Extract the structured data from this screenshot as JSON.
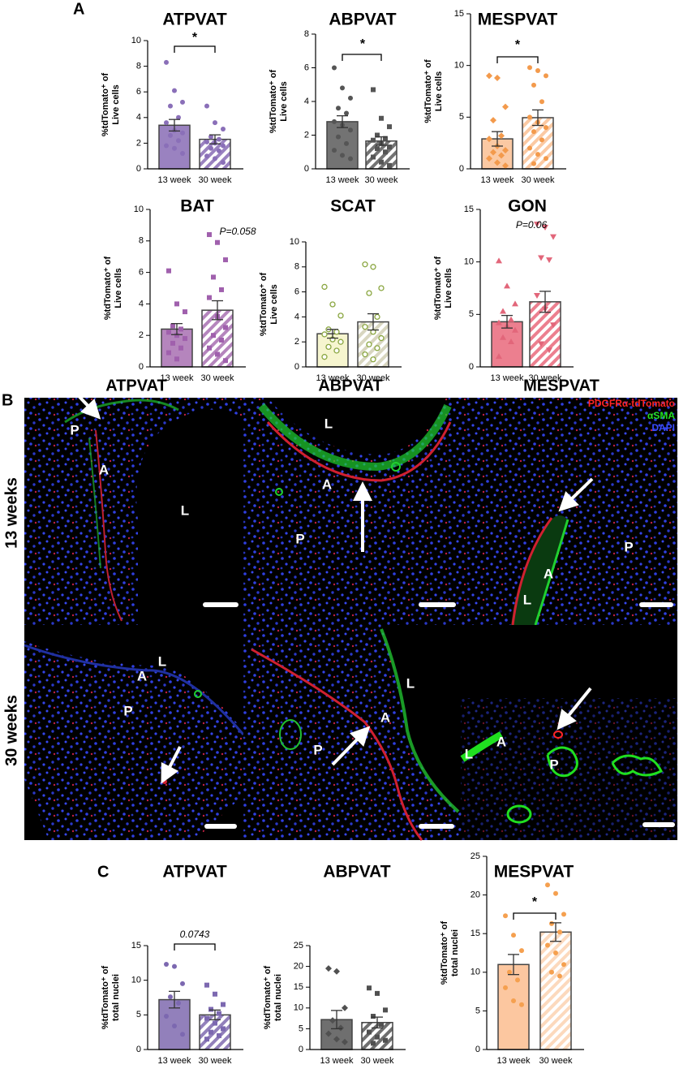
{
  "panel_labels": [
    "A",
    "B",
    "C"
  ],
  "chart_data": [
    {
      "type": "bar",
      "title": "ATPVAT",
      "ylabel": [
        "%tdTomato⁺ of",
        "Live cells"
      ],
      "categories": [
        "13 week",
        "30 week"
      ],
      "values": [
        3.4,
        2.3
      ],
      "errors": [
        0.45,
        0.35
      ],
      "points": [
        [
          8.3,
          6.1,
          5.2,
          4.9,
          4.0,
          3.6,
          3.0,
          2.8,
          2.6,
          2.2,
          1.8,
          1.6,
          1.2
        ],
        [
          4.9,
          3.6,
          3.1,
          2.5,
          2.3,
          2.1,
          2.0,
          1.8,
          1.6,
          1.4,
          1.0,
          0.8,
          0.5
        ]
      ],
      "colors": [
        "#9a82c0",
        "#9a82c0"
      ],
      "dot_colors": [
        "#8a6fb8",
        "#8a6fb8"
      ],
      "markers": [
        "circle",
        "circle"
      ],
      "hatch": [
        false,
        true
      ],
      "ylim": [
        0,
        10
      ],
      "yticks": [
        0,
        2,
        4,
        6,
        8,
        10
      ],
      "annotation": "*",
      "annotation_style": "normal",
      "bracket": true
    },
    {
      "type": "bar",
      "title": "ABPVAT",
      "ylabel": [
        "%tdTomato⁺ of",
        "Live cells"
      ],
      "categories": [
        "13 week",
        "30 week"
      ],
      "values": [
        2.8,
        1.65
      ],
      "errors": [
        0.35,
        0.25
      ],
      "points": [
        [
          6.0,
          4.8,
          4.2,
          3.6,
          3.3,
          2.8,
          2.6,
          2.3,
          1.9,
          1.5,
          1.1,
          0.8,
          0.6
        ],
        [
          4.7,
          3.0,
          2.5,
          2.0,
          1.8,
          1.7,
          1.5,
          1.3,
          1.2,
          1.0,
          0.7,
          0.4,
          0.2
        ]
      ],
      "colors": [
        "#737373",
        "#737373"
      ],
      "dot_colors": [
        "#555555",
        "#555555"
      ],
      "markers": [
        "circle",
        "square"
      ],
      "hatch": [
        false,
        true
      ],
      "ylim": [
        0,
        8
      ],
      "yticks": [
        0,
        2,
        4,
        6,
        8
      ],
      "annotation": "*",
      "annotation_style": "normal",
      "bracket": true
    },
    {
      "type": "bar",
      "title": "MESPVAT",
      "ylabel": [
        "%tdTomato⁺ of",
        "Live cells"
      ],
      "categories": [
        "13 week",
        "30 week"
      ],
      "values": [
        2.9,
        4.95
      ],
      "errors": [
        0.7,
        0.75
      ],
      "points": [
        [
          9.0,
          8.8,
          6.0,
          4.7,
          3.2,
          2.9,
          2.2,
          1.8,
          1.6,
          1.3,
          1.0,
          0.6,
          0.3
        ],
        [
          9.8,
          9.5,
          9.0,
          8.1,
          6.5,
          5.0,
          4.5,
          4.0,
          3.6,
          2.8,
          2.0,
          1.4,
          1.0,
          0.5
        ]
      ],
      "colors": [
        "#fbc9a3",
        "#fbc9a3"
      ],
      "dot_colors": [
        "#f39a4c",
        "#f39a4c"
      ],
      "markers": [
        "diamond",
        "circle"
      ],
      "hatch": [
        false,
        true
      ],
      "ylim": [
        0,
        15
      ],
      "yticks": [
        0,
        5,
        10,
        15
      ],
      "annotation": "*",
      "annotation_style": "normal",
      "bracket": true
    },
    {
      "type": "bar",
      "title": "BAT",
      "ylabel": [
        "%tdTomato⁺ of",
        "Live cells"
      ],
      "categories": [
        "13 week",
        "30 week"
      ],
      "values": [
        2.4,
        3.6
      ],
      "errors": [
        0.35,
        0.6
      ],
      "points": [
        [
          6.1,
          4.0,
          3.5,
          2.6,
          2.4,
          2.2,
          2.0,
          1.8,
          1.5,
          1.2,
          0.9,
          0.5
        ],
        [
          8.4,
          7.9,
          6.8,
          5.7,
          4.9,
          4.4,
          3.2,
          2.5,
          2.0,
          1.7,
          1.2,
          0.8,
          0.4
        ]
      ],
      "colors": [
        "#b585bd",
        "#b585bd"
      ],
      "dot_colors": [
        "#a060ad",
        "#a060ad"
      ],
      "markers": [
        "square",
        "square"
      ],
      "hatch": [
        false,
        true
      ],
      "ylim": [
        0,
        10
      ],
      "yticks": [
        0,
        2,
        4,
        6,
        8,
        10
      ],
      "annotation": "P=0.058",
      "annotation_style": "italic",
      "bracket": false
    },
    {
      "type": "bar",
      "title": "SCAT",
      "ylabel": [
        "%tdTomato⁺ of",
        "Live cells"
      ],
      "categories": [
        "13 week",
        "30 week"
      ],
      "values": [
        2.65,
        3.6
      ],
      "errors": [
        0.35,
        0.65
      ],
      "points": [
        [
          6.4,
          5.0,
          4.1,
          3.0,
          2.8,
          2.6,
          2.2,
          2.0,
          1.6,
          1.3,
          0.8
        ],
        [
          8.2,
          8.0,
          6.3,
          5.9,
          4.0,
          3.2,
          2.8,
          2.3,
          1.8,
          1.5,
          1.0,
          0.6
        ]
      ],
      "colors": [
        "#f6f5cf",
        "#d8d6c0"
      ],
      "dot_colors": [
        "#8aa640",
        "#8aa640"
      ],
      "markers": [
        "open-circle",
        "open-circle"
      ],
      "hatch": [
        false,
        true
      ],
      "ylim": [
        0,
        10
      ],
      "yticks": [
        0,
        2,
        4,
        6,
        8,
        10
      ]
    },
    {
      "type": "bar",
      "title": "GON",
      "ylabel": [
        "%tdTomato⁺ of",
        "Live cells"
      ],
      "categories": [
        "13 week",
        "30 week"
      ],
      "values": [
        4.3,
        6.2
      ],
      "errors": [
        0.6,
        1.0
      ],
      "points": [
        [
          10.1,
          7.7,
          6.0,
          5.3,
          4.5,
          4.2,
          3.9,
          3.5,
          2.8,
          2.4,
          1.0
        ],
        [
          13.6,
          13.3,
          12.4,
          10.4,
          10.2,
          6.8,
          5.5,
          4.0,
          2.2,
          1.6
        ]
      ],
      "colors": [
        "#ec7f8f",
        "#ec7f8f"
      ],
      "dot_colors": [
        "#e2667a",
        "#e2667a"
      ],
      "markers": [
        "triangle",
        "triangle-down"
      ],
      "hatch": [
        false,
        true
      ],
      "ylim": [
        0,
        15
      ],
      "yticks": [
        0,
        5,
        10,
        15
      ],
      "annotation": "P=0.06",
      "annotation_style": "italic",
      "bracket": false
    },
    {
      "type": "bar",
      "title": "ATPVAT",
      "ylabel": [
        "%tdTomato⁺ of",
        "total nuclei"
      ],
      "categories": [
        "13 week",
        "30 week"
      ],
      "values": [
        7.2,
        5.0
      ],
      "errors": [
        1.2,
        0.7
      ],
      "points": [
        [
          12.3,
          12.0,
          9.5,
          7.6,
          6.7,
          4.8,
          3.4,
          2.2
        ],
        [
          9.3,
          8.0,
          6.5,
          5.8,
          5.2,
          4.5,
          3.8,
          3.0,
          2.5,
          2.0,
          1.5
        ]
      ],
      "colors": [
        "#9280bb",
        "#9280bb"
      ],
      "dot_colors": [
        "#7c68b0",
        "#7c68b0"
      ],
      "markers": [
        "circle",
        "square"
      ],
      "hatch": [
        false,
        true
      ],
      "ylim": [
        0,
        15
      ],
      "yticks": [
        0,
        5,
        10,
        15
      ],
      "annotation": "0.0743",
      "annotation_style": "italic",
      "bracket": true
    },
    {
      "type": "bar",
      "title": "ABPVAT",
      "ylabel": [
        "%tdTomato⁺ of",
        "total nuclei"
      ],
      "categories": [
        "13 week",
        "30 week"
      ],
      "values": [
        7.2,
        6.5
      ],
      "errors": [
        2.2,
        1.3
      ],
      "points": [
        [
          19.5,
          18.8,
          10.0,
          7.0,
          5.2,
          3.8,
          2.5,
          1.8
        ],
        [
          14.8,
          13.5,
          9.5,
          8.0,
          6.0,
          4.2,
          3.0,
          2.2,
          1.5
        ]
      ],
      "colors": [
        "#6f6f6f",
        "#6f6f6f"
      ],
      "dot_colors": [
        "#505050",
        "#505050"
      ],
      "markers": [
        "diamond",
        "square"
      ],
      "hatch": [
        false,
        true
      ],
      "ylim": [
        0,
        25
      ],
      "yticks": [
        0,
        5,
        10,
        15,
        20,
        25
      ]
    },
    {
      "type": "bar",
      "title": "MESPVAT",
      "ylabel": [
        "%tdTomato⁺ of",
        "total nuclei"
      ],
      "categories": [
        "13 week",
        "30 week"
      ],
      "values": [
        11.0,
        15.2
      ],
      "errors": [
        1.3,
        1.2
      ],
      "points": [
        [
          17.3,
          14.8,
          12.8,
          10.0,
          9.0,
          8.0,
          6.3,
          5.8
        ],
        [
          21.3,
          20.2,
          17.5,
          16.3,
          15.2,
          13.5,
          12.5,
          11.0,
          10.0,
          9.5
        ]
      ],
      "colors": [
        "#fcc7a0",
        "#fcd9bd"
      ],
      "dot_colors": [
        "#f5a04f",
        "#f5a04f"
      ],
      "markers": [
        "circle",
        "circle"
      ],
      "hatch": [
        false,
        true
      ],
      "ylim": [
        0,
        25
      ],
      "yticks": [
        0,
        5,
        10,
        15,
        20,
        25
      ],
      "annotation": "*",
      "annotation_style": "normal",
      "bracket": true
    }
  ],
  "microscopy": {
    "columns": [
      "ATPVAT",
      "ABPVAT",
      "MESPVAT"
    ],
    "rows": [
      "13 weeks",
      "30 weeks"
    ],
    "legend": [
      {
        "name": "PDGFRα-tdTomato",
        "color": "#ff2424"
      },
      {
        "name": "αSMA",
        "color": "#22e022"
      },
      {
        "name": "DAPI",
        "color": "#3a4cff"
      }
    ],
    "images": [
      {
        "labels": [
          "P",
          "A",
          "L"
        ]
      },
      {
        "labels": [
          "L",
          "A",
          "P"
        ]
      },
      {
        "labels": [
          "A",
          "P",
          "L"
        ]
      },
      {
        "labels": [
          "L",
          "A",
          "P"
        ]
      },
      {
        "labels": [
          "L",
          "A",
          "P"
        ]
      },
      {
        "labels": [
          "A",
          "L",
          "P"
        ]
      }
    ]
  }
}
